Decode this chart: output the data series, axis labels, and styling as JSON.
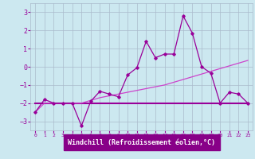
{
  "xlabel": "Windchill (Refroidissement éolien,°C)",
  "xlim": [
    -0.5,
    23.5
  ],
  "ylim": [
    -3.5,
    3.5
  ],
  "yticks": [
    -3,
    -2,
    -1,
    0,
    1,
    2,
    3
  ],
  "xticks": [
    0,
    1,
    2,
    3,
    4,
    5,
    6,
    7,
    8,
    9,
    10,
    11,
    12,
    13,
    14,
    15,
    16,
    17,
    18,
    19,
    20,
    21,
    22,
    23
  ],
  "bg_color": "#cce8f0",
  "line_color": "#990099",
  "line2_color": "#cc44cc",
  "grid_color": "#aabbcc",
  "xlabel_bg": "#880088",
  "xlabel_fg": "#ffffff",
  "series1_x": [
    0,
    1,
    2,
    3,
    4,
    5,
    6,
    7,
    8,
    9,
    10,
    11,
    12,
    13,
    14,
    15,
    16,
    17,
    18,
    19,
    20,
    21,
    22,
    23
  ],
  "series1_y": [
    -2.5,
    -1.8,
    -2.0,
    -2.0,
    -2.0,
    -3.25,
    -1.9,
    -1.35,
    -1.5,
    -1.65,
    -0.45,
    -0.05,
    1.4,
    0.5,
    0.7,
    0.7,
    2.8,
    1.85,
    0.0,
    -0.35,
    -2.0,
    -1.4,
    -1.5,
    -2.0
  ],
  "series2_x": [
    0,
    1,
    2,
    3,
    4,
    5,
    6,
    7,
    8,
    9,
    10,
    11,
    12,
    13,
    14,
    15,
    16,
    17,
    18,
    19,
    20,
    21,
    22,
    23
  ],
  "series2_y": [
    -2.5,
    -2.0,
    -2.0,
    -2.0,
    -2.0,
    -2.0,
    -1.85,
    -1.7,
    -1.6,
    -1.5,
    -1.4,
    -1.3,
    -1.2,
    -1.1,
    -1.0,
    -0.85,
    -0.7,
    -0.55,
    -0.4,
    -0.25,
    -0.1,
    0.05,
    0.2,
    0.35
  ],
  "series3_x": [
    0,
    23
  ],
  "series3_y": [
    -2.0,
    -2.0
  ]
}
